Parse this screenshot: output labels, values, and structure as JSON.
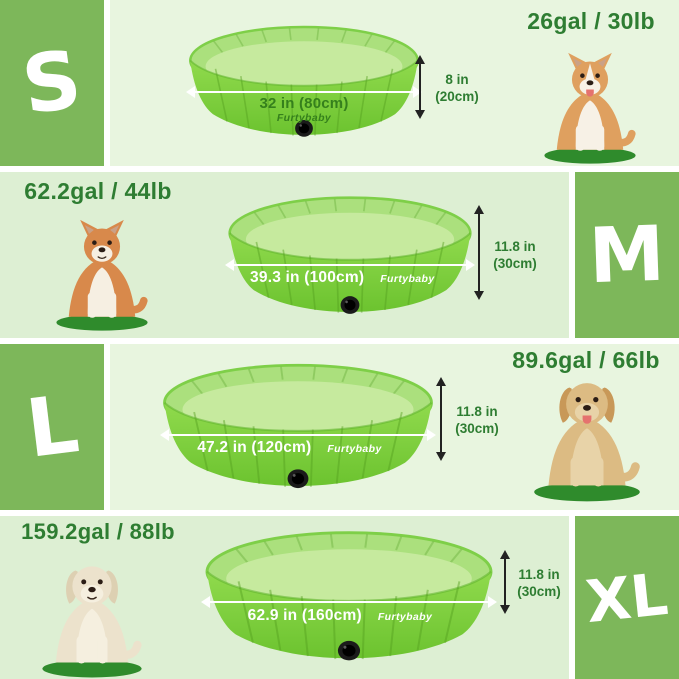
{
  "product": {
    "brand": "Furtybaby"
  },
  "colors": {
    "block_green": "#7db75a",
    "band_bg_light": "#e8f5df",
    "band_bg_mid": "#ddefd3",
    "header_green": "#2e7d32",
    "label_dark_green": "#35801c",
    "pool_green": "#7ccf3d",
    "pool_inner_green": "#abe07d",
    "grass_green": "#2f8b2c",
    "arrow_white": "#ffffff",
    "dim_arrow_dark": "#222222"
  },
  "rows": [
    {
      "size": "S",
      "capacity": "26gal / 30lb",
      "diameter": "32 in (80cm)",
      "height_in": "8 in",
      "height_cm": "(20cm)",
      "dog": "corgi"
    },
    {
      "size": "M",
      "capacity": "62.2gal / 44lb",
      "diameter": "39.3 in (100cm)",
      "height_in": "11.8 in",
      "height_cm": "(30cm)",
      "dog": "shiba-inu"
    },
    {
      "size": "L",
      "capacity": "89.6gal / 66lb",
      "diameter": "47.2 in (120cm)",
      "height_in": "11.8 in",
      "height_cm": "(30cm)",
      "dog": "golden-retriever"
    },
    {
      "size": "XL",
      "capacity": "159.2gal / 88lb",
      "diameter": "62.9 in (160cm)",
      "height_in": "11.8 in",
      "height_cm": "(30cm)",
      "dog": "labrador-retriever"
    }
  ]
}
